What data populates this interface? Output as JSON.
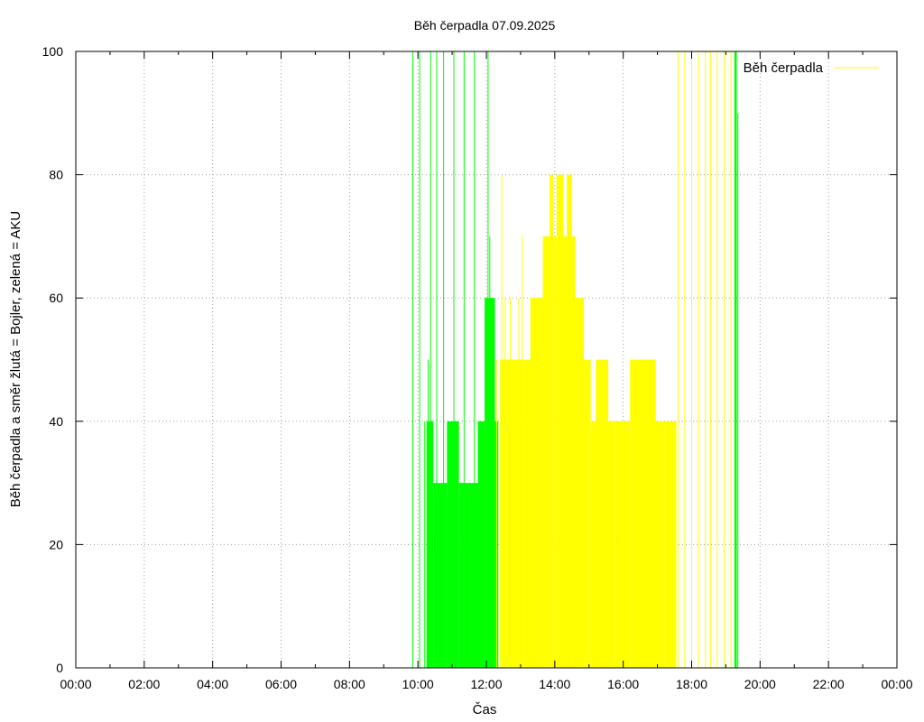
{
  "chart_data": {
    "type": "bar",
    "title": "Běh čerpadla 07.09.2025",
    "xlabel": "Čas",
    "ylabel": "Běh čerpadla a směr žlutá = Bojler, zelená = AKU",
    "xlim": [
      0,
      24
    ],
    "ylim": [
      0,
      100
    ],
    "x_ticks": [
      0,
      2,
      4,
      6,
      8,
      10,
      12,
      14,
      16,
      18,
      20,
      22,
      24
    ],
    "x_tick_labels": [
      "00:00",
      "02:00",
      "04:00",
      "06:00",
      "08:00",
      "10:00",
      "12:00",
      "14:00",
      "16:00",
      "18:00",
      "20:00",
      "22:00",
      "00:00"
    ],
    "x_minor_ticks": [
      1,
      3,
      5,
      7,
      9,
      11,
      13,
      15,
      17,
      19,
      21,
      23
    ],
    "y_ticks": [
      0,
      20,
      40,
      60,
      80,
      100
    ],
    "y_tick_labels": [
      "0",
      "20",
      "40",
      "60",
      "80",
      "100"
    ],
    "grid": true,
    "legend": {
      "position": "top-right",
      "entries": [
        {
          "label": "Běh čerpadla",
          "color": "#ffff00"
        }
      ]
    },
    "series": [
      {
        "name": "Běh čerpadla",
        "color": "#00ff00",
        "impulses": [
          [
            9.85,
            100
          ],
          [
            10.05,
            100
          ],
          [
            10.2,
            40
          ],
          [
            10.3,
            50
          ],
          [
            10.37,
            100
          ],
          [
            10.42,
            40
          ],
          [
            10.55,
            100
          ],
          [
            10.75,
            100
          ],
          [
            11.05,
            100
          ],
          [
            11.35,
            100
          ],
          [
            11.65,
            100
          ],
          [
            11.8,
            40
          ],
          [
            12.05,
            100
          ],
          [
            12.1,
            70
          ],
          [
            12.2,
            60
          ],
          [
            19.3,
            90
          ],
          [
            19.35,
            90
          ]
        ],
        "blocks": [
          [
            10.25,
            10.45,
            40
          ],
          [
            10.45,
            10.85,
            30
          ],
          [
            10.85,
            11.2,
            40
          ],
          [
            11.2,
            11.5,
            30
          ],
          [
            11.5,
            11.75,
            30
          ],
          [
            11.75,
            11.95,
            40
          ],
          [
            11.95,
            12.25,
            60
          ],
          [
            12.25,
            12.35,
            40
          ],
          [
            19.25,
            19.32,
            100
          ]
        ]
      },
      {
        "name": "Běh čerpadla",
        "color": "#ffff00",
        "impulses": [
          [
            12.3,
            50
          ],
          [
            12.45,
            80
          ],
          [
            12.55,
            60
          ],
          [
            12.7,
            60
          ],
          [
            12.85,
            50
          ],
          [
            12.95,
            60
          ],
          [
            13.05,
            70
          ],
          [
            13.15,
            50
          ],
          [
            13.3,
            60
          ],
          [
            13.45,
            50
          ],
          [
            13.55,
            60
          ],
          [
            13.75,
            70
          ],
          [
            14.15,
            70
          ],
          [
            14.4,
            60
          ],
          [
            14.95,
            50
          ],
          [
            15.2,
            40
          ],
          [
            15.45,
            40
          ],
          [
            15.55,
            50
          ],
          [
            15.85,
            30
          ],
          [
            16.5,
            50
          ],
          [
            16.75,
            40
          ],
          [
            16.95,
            40
          ],
          [
            17.6,
            100
          ],
          [
            17.8,
            100
          ],
          [
            18.0,
            100
          ],
          [
            18.2,
            100
          ],
          [
            18.4,
            100
          ],
          [
            18.55,
            100
          ],
          [
            18.75,
            100
          ],
          [
            18.95,
            100
          ],
          [
            19.15,
            100
          ]
        ],
        "blocks": [
          [
            12.4,
            12.6,
            50
          ],
          [
            12.6,
            12.85,
            50
          ],
          [
            12.85,
            13.1,
            50
          ],
          [
            13.1,
            13.3,
            50
          ],
          [
            13.3,
            13.5,
            60
          ],
          [
            13.5,
            13.65,
            60
          ],
          [
            13.65,
            13.85,
            70
          ],
          [
            13.85,
            13.95,
            80
          ],
          [
            13.95,
            14.05,
            70
          ],
          [
            14.05,
            14.25,
            80
          ],
          [
            14.25,
            14.35,
            70
          ],
          [
            14.35,
            14.5,
            80
          ],
          [
            14.5,
            14.6,
            70
          ],
          [
            14.6,
            14.85,
            60
          ],
          [
            14.85,
            15.05,
            50
          ],
          [
            15.05,
            15.2,
            40
          ],
          [
            15.2,
            15.35,
            50
          ],
          [
            15.35,
            15.55,
            50
          ],
          [
            15.55,
            15.75,
            40
          ],
          [
            15.75,
            15.95,
            40
          ],
          [
            15.95,
            16.2,
            40
          ],
          [
            16.2,
            16.5,
            50
          ],
          [
            16.5,
            16.75,
            50
          ],
          [
            16.75,
            16.95,
            50
          ],
          [
            16.95,
            17.2,
            40
          ],
          [
            17.2,
            17.55,
            40
          ]
        ]
      }
    ]
  }
}
